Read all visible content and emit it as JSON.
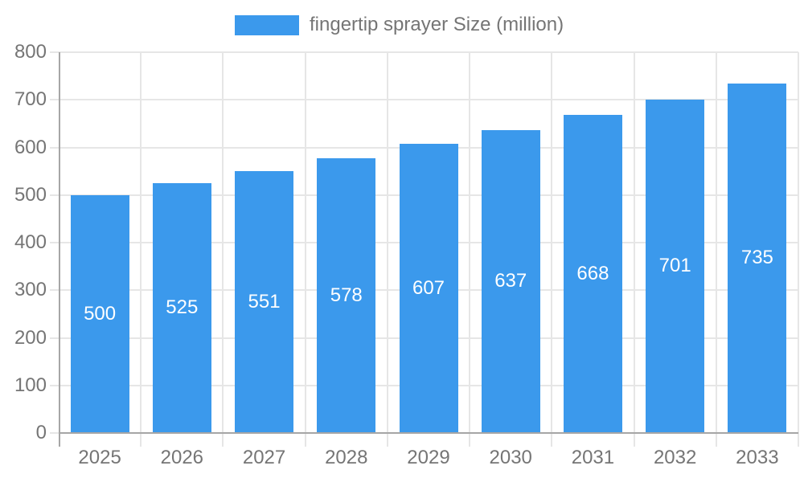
{
  "legend": {
    "label": "fingertip sprayer Size (million)",
    "swatch_color": "#3b99ec"
  },
  "chart_data": {
    "type": "bar",
    "title": "",
    "xlabel": "",
    "ylabel": "",
    "categories": [
      "2025",
      "2026",
      "2027",
      "2028",
      "2029",
      "2030",
      "2031",
      "2032",
      "2033"
    ],
    "values": [
      500,
      525,
      551,
      578,
      607,
      637,
      668,
      701,
      735
    ],
    "series_name": "fingertip sprayer Size (million)",
    "ylim": [
      0,
      800
    ],
    "ytick_step": 100,
    "grid": true,
    "legend_position": "top",
    "bar_color": "#3b99ec",
    "value_label_color": "#ffffff",
    "axis_text_color": "#757575",
    "grid_color": "#e6e6e6",
    "axis_line_color": "#a6a6a6"
  }
}
